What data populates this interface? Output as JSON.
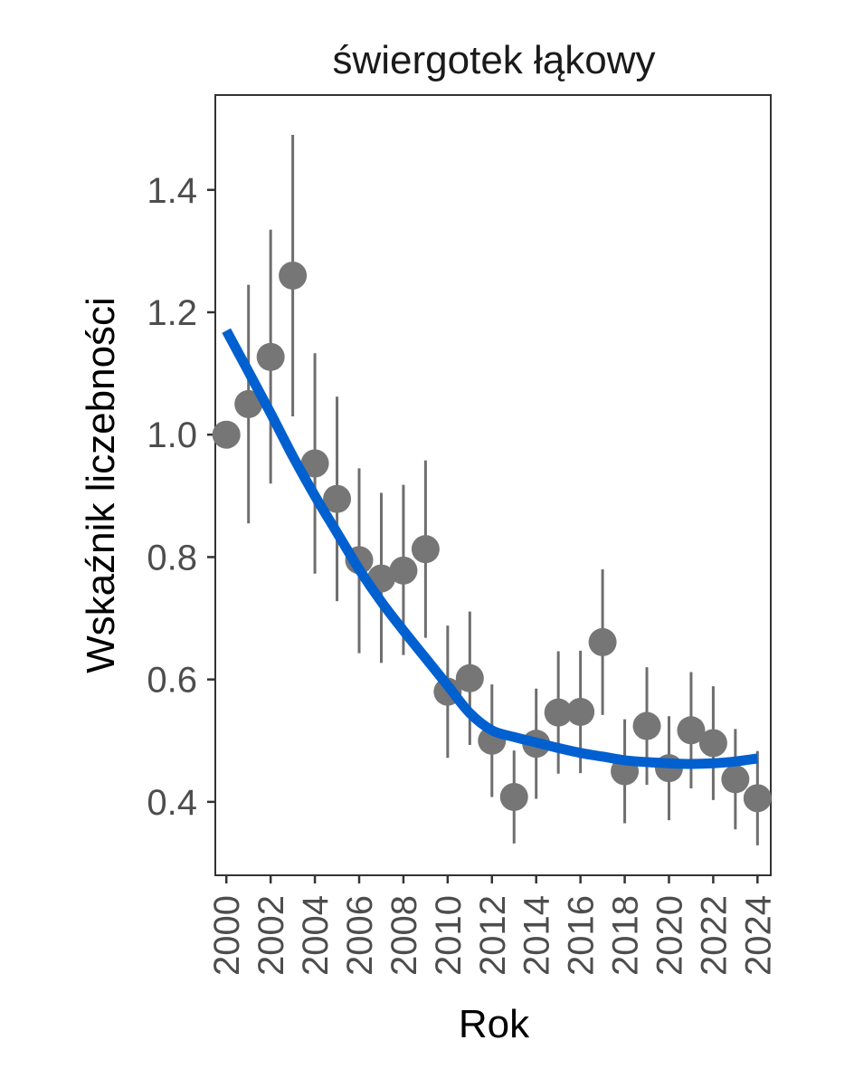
{
  "chart_data": {
    "type": "scatter",
    "title": "świergotek łąkowy",
    "xlabel": "Rok",
    "ylabel": "Wskaźnik liczebności",
    "xlim": [
      1999.5,
      2024.6
    ],
    "ylim": [
      0.28,
      1.555
    ],
    "y_ticks": [
      0.4,
      0.6,
      0.8,
      1.0,
      1.2,
      1.4
    ],
    "y_tick_labels": [
      "0.4",
      "0.6",
      "0.8",
      "1.0",
      "1.2",
      "1.4"
    ],
    "x_ticks": [
      2000,
      2002,
      2004,
      2006,
      2008,
      2010,
      2012,
      2014,
      2016,
      2018,
      2020,
      2022,
      2024
    ],
    "x_tick_labels": [
      "2000",
      "2002",
      "2004",
      "2006",
      "2008",
      "2010",
      "2012",
      "2014",
      "2016",
      "2018",
      "2020",
      "2022",
      "2024"
    ],
    "series": [
      {
        "name": "index",
        "color": "#767676",
        "points": [
          {
            "year": 2000,
            "value": 1.0,
            "lower": 1.0,
            "upper": 1.0
          },
          {
            "year": 2001,
            "value": 1.05,
            "lower": 0.855,
            "upper": 1.245
          },
          {
            "year": 2002,
            "value": 1.127,
            "lower": 0.92,
            "upper": 1.335
          },
          {
            "year": 2003,
            "value": 1.26,
            "lower": 1.03,
            "upper": 1.49
          },
          {
            "year": 2004,
            "value": 0.953,
            "lower": 0.773,
            "upper": 1.133
          },
          {
            "year": 2005,
            "value": 0.895,
            "lower": 0.728,
            "upper": 1.062
          },
          {
            "year": 2006,
            "value": 0.795,
            "lower": 0.643,
            "upper": 0.945
          },
          {
            "year": 2007,
            "value": 0.765,
            "lower": 0.627,
            "upper": 0.905
          },
          {
            "year": 2008,
            "value": 0.778,
            "lower": 0.64,
            "upper": 0.918
          },
          {
            "year": 2009,
            "value": 0.813,
            "lower": 0.668,
            "upper": 0.958
          },
          {
            "year": 2010,
            "value": 0.58,
            "lower": 0.472,
            "upper": 0.688
          },
          {
            "year": 2011,
            "value": 0.602,
            "lower": 0.493,
            "upper": 0.711
          },
          {
            "year": 2012,
            "value": 0.5,
            "lower": 0.408,
            "upper": 0.592
          },
          {
            "year": 2013,
            "value": 0.408,
            "lower": 0.332,
            "upper": 0.484
          },
          {
            "year": 2014,
            "value": 0.495,
            "lower": 0.405,
            "upper": 0.585
          },
          {
            "year": 2015,
            "value": 0.546,
            "lower": 0.446,
            "upper": 0.646
          },
          {
            "year": 2016,
            "value": 0.547,
            "lower": 0.447,
            "upper": 0.647
          },
          {
            "year": 2017,
            "value": 0.661,
            "lower": 0.542,
            "upper": 0.78
          },
          {
            "year": 2018,
            "value": 0.45,
            "lower": 0.365,
            "upper": 0.535
          },
          {
            "year": 2019,
            "value": 0.524,
            "lower": 0.428,
            "upper": 0.62
          },
          {
            "year": 2020,
            "value": 0.455,
            "lower": 0.37,
            "upper": 0.54
          },
          {
            "year": 2021,
            "value": 0.517,
            "lower": 0.422,
            "upper": 0.612
          },
          {
            "year": 2022,
            "value": 0.496,
            "lower": 0.403,
            "upper": 0.589
          },
          {
            "year": 2023,
            "value": 0.437,
            "lower": 0.355,
            "upper": 0.519
          },
          {
            "year": 2024,
            "value": 0.406,
            "lower": 0.329,
            "upper": 0.483
          }
        ]
      },
      {
        "name": "trend",
        "type": "line",
        "color": "#0060d0",
        "x": [
          2000,
          2001,
          2002,
          2003,
          2004,
          2005,
          2006,
          2007,
          2008,
          2009,
          2010,
          2011,
          2012,
          2013,
          2014,
          2015,
          2016,
          2017,
          2018,
          2019,
          2020,
          2021,
          2022,
          2023,
          2024
        ],
        "values": [
          1.17,
          1.103,
          1.035,
          0.965,
          0.9,
          0.84,
          0.78,
          0.727,
          0.68,
          0.635,
          0.59,
          0.545,
          0.517,
          0.506,
          0.497,
          0.488,
          0.48,
          0.474,
          0.468,
          0.465,
          0.463,
          0.462,
          0.463,
          0.466,
          0.471
        ]
      }
    ]
  }
}
